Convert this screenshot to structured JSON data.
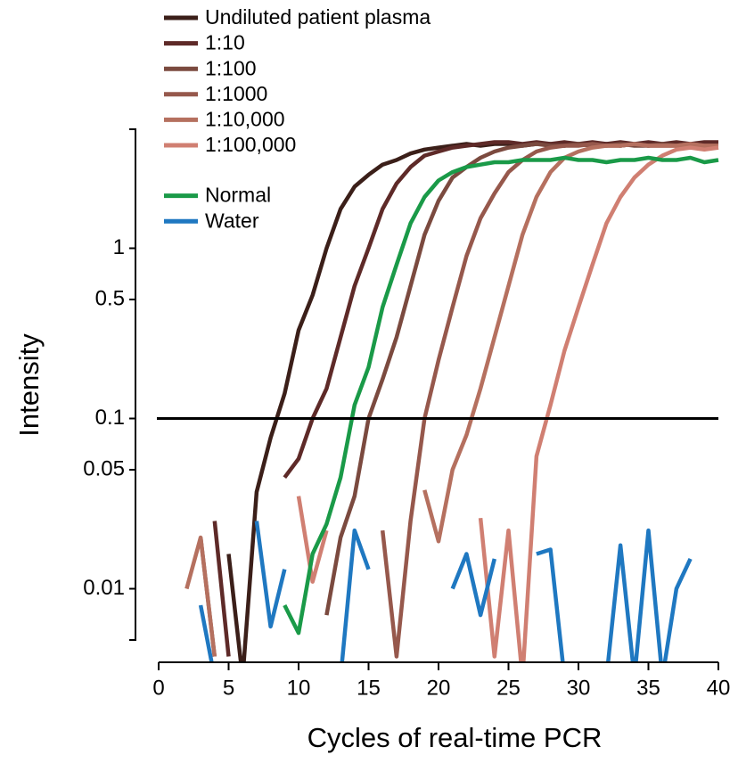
{
  "chart_data": {
    "type": "line",
    "x_label": "Cycles of real-time PCR",
    "y_label": "Intensity",
    "log_y": true,
    "xlim": [
      0,
      40
    ],
    "xticks": [
      0,
      5,
      10,
      15,
      20,
      25,
      30,
      35,
      40
    ],
    "ylim": [
      0.005,
      5
    ],
    "yticks": [
      0.01,
      0.05,
      0.1,
      0.5,
      1
    ],
    "threshold": 0.1,
    "legend": "top-left",
    "x": [
      0,
      1,
      2,
      3,
      4,
      5,
      6,
      7,
      8,
      9,
      10,
      11,
      12,
      13,
      14,
      15,
      16,
      17,
      18,
      19,
      20,
      21,
      22,
      23,
      24,
      25,
      26,
      27,
      28,
      29,
      30,
      31,
      32,
      33,
      34,
      35,
      36,
      37,
      38,
      39,
      40
    ],
    "series": [
      {
        "name": "Undiluted patient plasma",
        "color": "#3b1f19",
        "values": [
          null,
          null,
          null,
          null,
          null,
          0.016,
          0.003,
          0.037,
          0.077,
          0.14,
          0.33,
          0.53,
          1.0,
          1.7,
          2.3,
          2.7,
          3.1,
          3.3,
          3.6,
          3.8,
          3.9,
          4.0,
          4.1,
          4.0,
          4.1,
          4.1,
          4.0,
          4.1,
          4.1,
          4.0,
          4.1,
          4.0,
          4.1,
          4.0,
          4.1,
          4.0,
          4.1,
          4.0,
          4.0,
          4.0,
          4.0
        ]
      },
      {
        "name": "1:10",
        "color": "#5e2a28",
        "values": [
          null,
          null,
          null,
          null,
          0.025,
          0.004,
          null,
          null,
          null,
          0.045,
          0.058,
          0.1,
          0.15,
          0.3,
          0.6,
          1.0,
          1.7,
          2.4,
          3.0,
          3.5,
          3.7,
          3.9,
          4.0,
          4.1,
          4.2,
          4.2,
          4.1,
          4.2,
          4.1,
          4.2,
          4.1,
          4.2,
          4.1,
          4.2,
          4.1,
          4.2,
          4.1,
          4.2,
          4.1,
          4.2,
          4.2
        ]
      },
      {
        "name": "1:100",
        "color": "#7b4a3f",
        "values": [
          null,
          null,
          null,
          0.02,
          0.004,
          null,
          null,
          null,
          null,
          null,
          null,
          null,
          0.007,
          0.02,
          0.035,
          0.1,
          0.17,
          0.3,
          0.6,
          1.2,
          1.9,
          2.6,
          3.0,
          3.4,
          3.7,
          3.9,
          4.0,
          4.1,
          4.0,
          4.0,
          4.1,
          4.0,
          4.0,
          4.1,
          4.0,
          4.0,
          4.1,
          4.0,
          4.0,
          4.0,
          4.0
        ]
      },
      {
        "name": "1:1000",
        "color": "#96584c",
        "values": [
          null,
          null,
          null,
          null,
          null,
          null,
          null,
          null,
          null,
          null,
          null,
          null,
          null,
          null,
          null,
          null,
          0.022,
          0.004,
          0.025,
          0.1,
          0.22,
          0.45,
          0.9,
          1.5,
          2.1,
          2.8,
          3.3,
          3.7,
          3.9,
          4.0,
          4.0,
          4.1,
          4.0,
          4.0,
          4.1,
          4.0,
          4.0,
          4.0,
          4.1,
          4.0,
          4.0
        ]
      },
      {
        "name": "1:10,000",
        "color": "#b5705f",
        "values": [
          null,
          null,
          0.01,
          0.02,
          0.004,
          null,
          null,
          null,
          null,
          null,
          null,
          null,
          null,
          null,
          null,
          null,
          null,
          null,
          null,
          0.038,
          0.019,
          0.05,
          0.08,
          0.15,
          0.3,
          0.6,
          1.2,
          2.0,
          2.8,
          3.4,
          3.7,
          3.9,
          4.0,
          4.0,
          4.1,
          4.0,
          4.0,
          4.0,
          4.1,
          4.0,
          4.0
        ]
      },
      {
        "name": "1:100,000",
        "color": "#d07f72",
        "values": [
          null,
          null,
          null,
          null,
          null,
          null,
          null,
          null,
          null,
          null,
          0.035,
          0.011,
          0.022,
          null,
          null,
          null,
          null,
          null,
          null,
          null,
          null,
          null,
          null,
          0.026,
          0.004,
          0.022,
          0.003,
          0.06,
          0.12,
          0.25,
          0.45,
          0.8,
          1.4,
          2.0,
          2.6,
          3.1,
          3.5,
          3.8,
          3.9,
          3.8,
          3.9
        ]
      },
      {
        "name": "Normal",
        "color": "#1a9a48",
        "values": [
          null,
          null,
          null,
          null,
          null,
          null,
          null,
          null,
          null,
          0.008,
          0.0055,
          0.016,
          0.024,
          0.045,
          0.12,
          0.2,
          0.45,
          0.8,
          1.4,
          2.0,
          2.5,
          2.8,
          3.0,
          3.1,
          3.2,
          3.2,
          3.3,
          3.3,
          3.3,
          3.4,
          3.3,
          3.3,
          3.2,
          3.3,
          3.3,
          3.4,
          3.3,
          3.3,
          3.4,
          3.2,
          3.3
        ]
      },
      {
        "name": "Water",
        "color": "#1f78c1",
        "values": [
          null,
          null,
          null,
          0.008,
          0.003,
          null,
          null,
          0.025,
          0.006,
          0.013,
          null,
          null,
          null,
          0.003,
          0.022,
          0.013,
          null,
          null,
          null,
          null,
          null,
          0.01,
          0.016,
          0.007,
          0.015,
          null,
          null,
          0.016,
          0.017,
          0.003,
          null,
          null,
          0.003,
          0.018,
          0.003,
          0.022,
          0.003,
          0.01,
          0.015,
          null,
          null
        ]
      }
    ]
  }
}
